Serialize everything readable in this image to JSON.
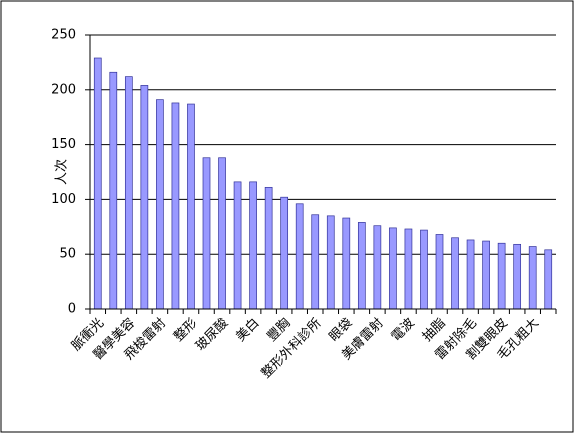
{
  "chart_data": {
    "type": "bar",
    "y_label": "人次",
    "categories": [
      "脈衝光",
      null,
      "醫學美容",
      null,
      "飛梭雷射",
      null,
      "整形",
      null,
      "玻尿酸",
      null,
      "美白",
      null,
      "豐胸",
      null,
      "整形外科診所",
      null,
      "眼袋",
      null,
      "美膚雷射",
      null,
      "電波",
      null,
      "抽脂",
      null,
      "雷射除毛",
      null,
      "割雙眼皮",
      null,
      "毛孔粗大",
      null
    ],
    "values": [
      229,
      216,
      212,
      204,
      191,
      188,
      187,
      138,
      138,
      116,
      116,
      111,
      102,
      96,
      86,
      85,
      83,
      79,
      76,
      74,
      73,
      72,
      68,
      65,
      63,
      62,
      60,
      59,
      57,
      54
    ],
    "color": "#9999ff",
    "ylim": [
      0,
      250
    ],
    "yticks": [
      0,
      50,
      100,
      150,
      200,
      250
    ],
    "grid": true
  }
}
